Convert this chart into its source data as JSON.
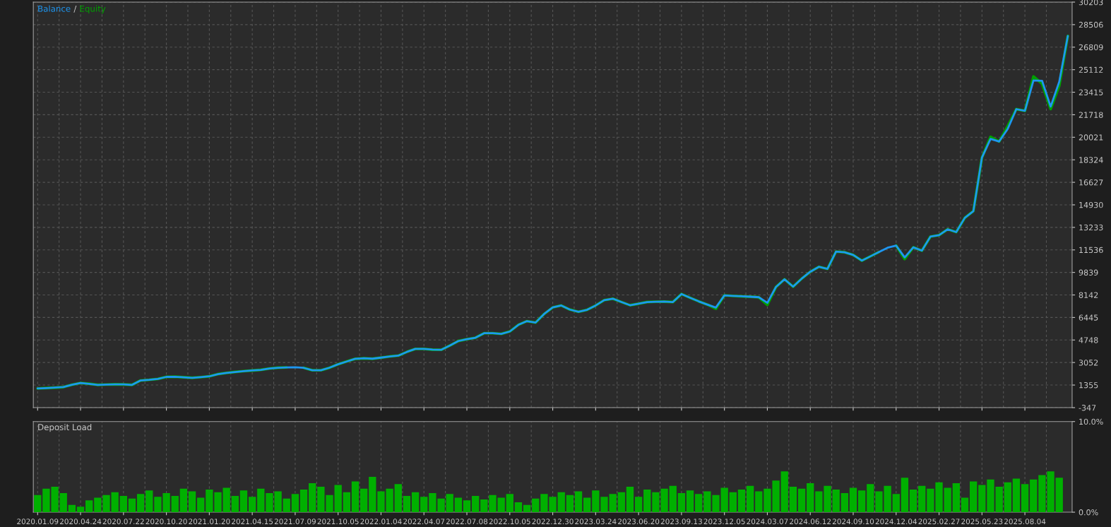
{
  "chart_data": [
    {
      "type": "line",
      "tick_labels": "y",
      "legend": "top left",
      "grid": true,
      "line_style": "solid",
      "marker": "none",
      "annotations": [
        "/"
      ],
      "ylim": [
        -347,
        30203
      ],
      "yticks": [
        -347,
        1355,
        3052,
        4748,
        6445,
        8142,
        9839,
        11536,
        13233,
        14930,
        16627,
        18324,
        20021,
        21718,
        23415,
        25112,
        26809,
        28506,
        30203
      ],
      "categories": [
        null,
        null,
        null,
        null,
        null,
        null,
        null,
        null,
        null,
        null,
        null,
        null,
        null,
        null,
        null,
        null,
        null,
        null,
        null,
        null,
        null,
        null,
        null,
        null,
        null,
        null,
        null,
        null,
        null,
        null,
        null,
        null,
        null,
        null,
        null,
        null,
        null,
        null,
        null,
        null,
        null,
        null,
        null,
        null,
        null,
        null,
        null,
        null,
        null,
        null,
        null,
        null,
        null,
        null,
        null,
        null,
        null,
        null,
        null,
        null,
        null,
        null,
        null,
        null,
        null,
        null,
        null,
        null,
        null,
        null,
        null,
        null,
        null,
        null,
        null,
        null,
        null,
        null,
        null,
        null,
        null,
        null,
        null,
        null,
        null,
        null,
        null,
        null,
        null,
        null,
        null,
        null,
        null,
        null,
        null,
        null,
        null,
        null,
        null,
        null,
        null,
        null,
        null,
        null,
        null,
        null,
        null,
        null,
        null,
        null,
        null,
        null,
        null,
        null,
        null,
        null,
        null,
        null,
        null,
        null,
        null
      ],
      "series": [
        {
          "name": "Balance",
          "color": "#1e96f0",
          "values": [
            1100,
            1130,
            1160,
            1200,
            1380,
            1510,
            1450,
            1370,
            1390,
            1410,
            1400,
            1370,
            1700,
            1750,
            1820,
            1970,
            1980,
            1940,
            1900,
            1950,
            2010,
            2180,
            2270,
            2340,
            2400,
            2450,
            2500,
            2600,
            2660,
            2680,
            2690,
            2650,
            2470,
            2470,
            2660,
            2920,
            3130,
            3330,
            3370,
            3340,
            3420,
            3510,
            3570,
            3850,
            4080,
            4080,
            4020,
            4010,
            4320,
            4670,
            4810,
            4920,
            5260,
            5260,
            5210,
            5390,
            5890,
            6170,
            6060,
            6710,
            7200,
            7350,
            7040,
            6870,
            7020,
            7350,
            7750,
            7860,
            7610,
            7370,
            7480,
            7610,
            7630,
            7640,
            7610,
            8210,
            7930,
            7660,
            7420,
            7190,
            8110,
            8070,
            8040,
            8010,
            7970,
            7550,
            8740,
            9320,
            8770,
            9370,
            9890,
            10260,
            10110,
            11410,
            11360,
            11160,
            10730,
            11050,
            11380,
            11700,
            11860,
            10970,
            11730,
            11480,
            12540,
            12650,
            13090,
            12880,
            13950,
            14460,
            18500,
            19900,
            19700,
            20650,
            22140,
            22010,
            24300,
            24280,
            22330,
            24200,
            27650
          ]
        },
        {
          "name": "Equity",
          "color": "#00a000",
          "values": [
            1100,
            1130,
            1160,
            1200,
            1380,
            1510,
            1450,
            1370,
            1390,
            1410,
            1400,
            1370,
            1700,
            1750,
            1820,
            1970,
            1980,
            1940,
            1900,
            1950,
            2010,
            2180,
            2270,
            2340,
            2400,
            2450,
            2500,
            2600,
            2660,
            2680,
            null,
            2650,
            2470,
            2470,
            2660,
            2920,
            3130,
            3330,
            3370,
            3340,
            3420,
            3510,
            3570,
            3850,
            4080,
            4080,
            4020,
            4010,
            4320,
            4670,
            4810,
            4920,
            5260,
            5260,
            5210,
            5390,
            5890,
            6170,
            6060,
            6710,
            7200,
            7350,
            7040,
            6870,
            7020,
            7350,
            7750,
            7860,
            7610,
            7370,
            7480,
            7610,
            7630,
            7640,
            7610,
            8210,
            7930,
            7660,
            7420,
            7100,
            8110,
            8070,
            8040,
            8010,
            7970,
            7400,
            8740,
            9320,
            8770,
            9370,
            9890,
            10260,
            10110,
            11410,
            11360,
            11160,
            10730,
            11050,
            11380,
            null,
            11860,
            10850,
            11730,
            11480,
            12540,
            12650,
            13090,
            12880,
            13950,
            14460,
            18500,
            20050,
            19700,
            20850,
            22140,
            22010,
            24600,
            24050,
            22150,
            23900,
            27650
          ]
        }
      ]
    },
    {
      "type": "bar",
      "title": "Deposit Load",
      "grid": "x",
      "color": "#00b000",
      "ylim": [
        0,
        10
      ],
      "yticks": [
        {
          "value": 0,
          "label": "0.0%"
        },
        {
          "value": 10,
          "label": "10.0%"
        }
      ],
      "categories": [
        "2020.01.09",
        null,
        null,
        null,
        null,
        "2020.04.24",
        null,
        null,
        null,
        null,
        "2020.07.22",
        null,
        null,
        null,
        null,
        "2020.10.20",
        null,
        null,
        null,
        null,
        "2021.01.20",
        null,
        null,
        null,
        null,
        "2021.04.15",
        null,
        null,
        null,
        null,
        "2021.07.09",
        null,
        null,
        null,
        null,
        "2021.10.05",
        null,
        null,
        null,
        null,
        "2022.01.04",
        null,
        null,
        null,
        null,
        "2022.04.07",
        null,
        null,
        null,
        null,
        "2022.07.08",
        null,
        null,
        null,
        null,
        "2022.10.05",
        null,
        null,
        null,
        null,
        "2022.12.30",
        null,
        null,
        null,
        null,
        "2023.03.24",
        null,
        null,
        null,
        null,
        "2023.06.20",
        null,
        null,
        null,
        null,
        "2023.09.13",
        null,
        null,
        null,
        null,
        "2023.12.05",
        null,
        null,
        null,
        null,
        "2024.03.07",
        null,
        null,
        null,
        null,
        "2024.06.12",
        null,
        null,
        null,
        null,
        "2024.09.10",
        null,
        null,
        null,
        null,
        "2024.12.04",
        null,
        null,
        null,
        null,
        "2025.02.27",
        null,
        null,
        null,
        null,
        "2025.05.23",
        null,
        null,
        null,
        null,
        "2025.08.04",
        null,
        null,
        null,
        null
      ],
      "values": [
        1.9,
        2.6,
        2.8,
        2.1,
        0.8,
        0.6,
        1.3,
        1.6,
        1.9,
        2.2,
        1.8,
        1.5,
        2.0,
        2.4,
        1.7,
        2.1,
        1.8,
        2.6,
        2.3,
        1.6,
        2.5,
        2.2,
        2.7,
        1.8,
        2.4,
        1.7,
        2.6,
        2.1,
        2.3,
        1.5,
        2.0,
        2.5,
        3.2,
        2.8,
        1.9,
        3.0,
        2.2,
        3.4,
        2.6,
        3.9,
        2.3,
        2.6,
        3.1,
        1.8,
        2.2,
        1.7,
        2.1,
        1.5,
        2.0,
        1.6,
        1.3,
        1.8,
        1.4,
        1.9,
        1.6,
        2.0,
        1.1,
        0.8,
        1.5,
        2.0,
        1.7,
        2.2,
        1.9,
        2.3,
        1.6,
        2.4,
        1.7,
        2.0,
        2.2,
        2.8,
        1.7,
        2.5,
        2.2,
        2.6,
        2.9,
        2.1,
        2.4,
        2.0,
        2.3,
        1.9,
        2.7,
        2.2,
        2.5,
        2.9,
        2.3,
        2.6,
        3.5,
        4.5,
        2.8,
        2.6,
        3.2,
        2.3,
        2.9,
        2.5,
        2.1,
        2.7,
        2.4,
        3.1,
        2.3,
        2.9,
        2.0,
        3.8,
        2.5,
        2.9,
        2.6,
        3.3,
        2.7,
        3.2,
        1.6,
        3.4,
        3.0,
        3.6,
        2.8,
        3.3,
        3.7,
        3.1,
        3.6,
        4.1,
        4.5,
        3.8
      ]
    }
  ]
}
